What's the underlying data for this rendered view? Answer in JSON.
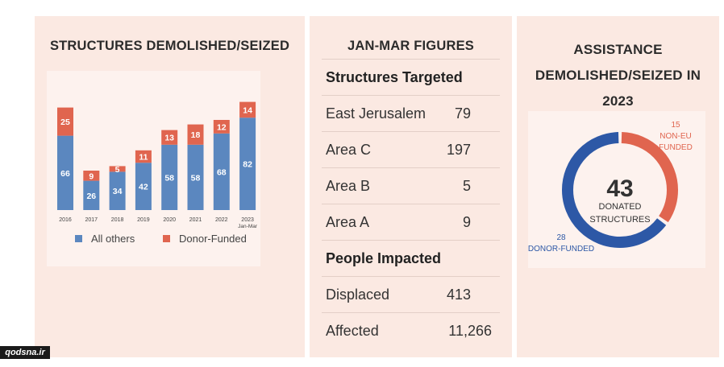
{
  "panel1": {
    "title": "STRUCTURES DEMOLISHED/SEIZED"
  },
  "panel2": {
    "title": "JAN-MAR FIGURES",
    "rows": [
      {
        "label": "Structures Targeted",
        "value": "",
        "header": true
      },
      {
        "label": "East Jerusalem",
        "value": "79"
      },
      {
        "label": "Area C",
        "value": "197"
      },
      {
        "label": "Area B",
        "value": "5"
      },
      {
        "label": "Area A",
        "value": "9"
      },
      {
        "label": "People Impacted",
        "value": "",
        "header": true
      },
      {
        "label": "Displaced",
        "value": "413"
      },
      {
        "label": "Affected",
        "value": "11,266"
      }
    ]
  },
  "panel3": {
    "title_lines": [
      "ASSISTANCE",
      "DEMOLISHED/SEIZED IN",
      "2023"
    ],
    "center_value": "43",
    "center_lines": [
      "DONATED",
      "STRUCTURES"
    ],
    "label_non_eu": [
      "15",
      "NON-EU",
      "FUNDED"
    ],
    "label_donor": [
      "28",
      "DONOR-FUNDED"
    ]
  },
  "watermark": "qodsna.ir",
  "colors": {
    "all_others": "#5b87bf",
    "donor_funded": "#e0654f",
    "donut_blue": "#2d58a6",
    "donut_red": "#e0654f"
  },
  "chart_data": [
    {
      "type": "bar",
      "stacked": true,
      "title": "STRUCTURES DEMOLISHED/SEIZED",
      "categories": [
        "2016",
        "2017",
        "2018",
        "2019",
        "2020",
        "2021",
        "2022",
        "2023\nJan-Mar"
      ],
      "series": [
        {
          "name": "All others",
          "values": [
            66,
            26,
            34,
            42,
            58,
            58,
            68,
            82
          ]
        },
        {
          "name": "Donor-Funded",
          "values": [
            25,
            9,
            5,
            11,
            13,
            18,
            12,
            14
          ]
        }
      ],
      "legend": "bottom",
      "grid": false
    },
    {
      "type": "pie",
      "donut": true,
      "title": "ASSISTANCE DEMOLISHED/SEIZED IN 2023",
      "categories": [
        "DONOR-FUNDED",
        "NON-EU FUNDED"
      ],
      "values": [
        28,
        15
      ],
      "total": 43
    }
  ]
}
